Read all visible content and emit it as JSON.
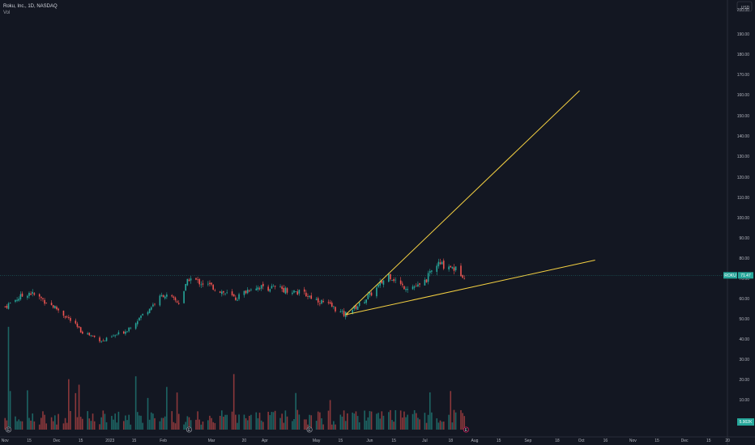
{
  "header": {
    "title": "Roku, Inc., 1D, NASDAQ",
    "volume_label": "Vol"
  },
  "price_scale": {
    "currency": "USD",
    "labels": [
      "200.00",
      "190.00",
      "180.00",
      "170.00",
      "160.00",
      "150.00",
      "140.00",
      "130.00",
      "120.00",
      "110.00",
      "100.00",
      "90.00",
      "80.00",
      "70.00",
      "60.00",
      "50.00",
      "40.00",
      "30.00",
      "20.00",
      "10.00"
    ],
    "current_symbol": "ROKU",
    "current_price": "71.47",
    "volume_value": "5.902K"
  },
  "time_axis": {
    "labels": [
      "Nov",
      "15",
      "Dec",
      "15",
      "2023",
      "15",
      "Feb",
      "Mar",
      "20",
      "Apr",
      "May",
      "15",
      "Jun",
      "15",
      "Jul",
      "18",
      "Aug",
      "15",
      "Sep",
      "18",
      "Oct",
      "16",
      "Nov",
      "15",
      "Dec",
      "15",
      "20"
    ]
  },
  "markers": [
    "E",
    "E",
    "E",
    "E",
    "E"
  ],
  "chart_data": {
    "type": "candlestick",
    "title": "Roku, Inc., 1D, NASDAQ",
    "symbol": "ROKU",
    "interval": "1D",
    "exchange": "NASDAQ",
    "currency": "USD",
    "last_price": 71.47,
    "last_volume": "5.902K",
    "ylim": [
      0,
      200
    ],
    "y_scale": "log",
    "x_range": [
      "Nov 2022",
      "Dec 2023"
    ],
    "close_path": [
      {
        "date": "2022-11-01",
        "close": 56
      },
      {
        "date": "2022-11-08",
        "close": 60
      },
      {
        "date": "2022-11-15",
        "close": 63
      },
      {
        "date": "2022-11-22",
        "close": 60
      },
      {
        "date": "2022-12-01",
        "close": 55
      },
      {
        "date": "2022-12-08",
        "close": 50
      },
      {
        "date": "2022-12-15",
        "close": 44
      },
      {
        "date": "2022-12-28",
        "close": 39
      },
      {
        "date": "2023-01-10",
        "close": 44
      },
      {
        "date": "2023-01-20",
        "close": 52
      },
      {
        "date": "2023-02-01",
        "close": 62
      },
      {
        "date": "2023-02-10",
        "close": 58
      },
      {
        "date": "2023-02-16",
        "close": 70
      },
      {
        "date": "2023-03-01",
        "close": 66
      },
      {
        "date": "2023-03-15",
        "close": 60
      },
      {
        "date": "2023-03-25",
        "close": 66
      },
      {
        "date": "2023-04-10",
        "close": 65
      },
      {
        "date": "2023-04-25",
        "close": 62
      },
      {
        "date": "2023-05-10",
        "close": 56
      },
      {
        "date": "2023-05-17",
        "close": 52
      },
      {
        "date": "2023-05-26",
        "close": 57
      },
      {
        "date": "2023-06-05",
        "close": 65
      },
      {
        "date": "2023-06-12",
        "close": 72
      },
      {
        "date": "2023-06-20",
        "close": 66
      },
      {
        "date": "2023-07-01",
        "close": 66
      },
      {
        "date": "2023-07-10",
        "close": 77
      },
      {
        "date": "2023-07-18",
        "close": 76
      },
      {
        "date": "2023-07-26",
        "close": 71.47
      }
    ],
    "trendlines": [
      {
        "from": {
          "date": "2023-05-18",
          "price": 52
        },
        "to": {
          "date": "2023-10-01",
          "price": 162
        }
      },
      {
        "from": {
          "date": "2023-05-18",
          "price": 52
        },
        "to": {
          "date": "2023-10-10",
          "price": 79
        }
      }
    ],
    "volume_max_label": "10.00",
    "grid": false,
    "legend": "top-left"
  },
  "colors": {
    "background": "#131722",
    "up": "#26a69a",
    "down": "#ef5350",
    "trendline": "#f5d142",
    "text": "#b2b5be"
  }
}
